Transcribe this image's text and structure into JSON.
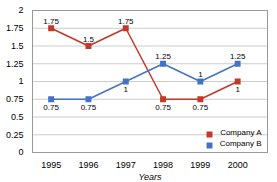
{
  "chart_data": {
    "type": "line",
    "x": [
      1995,
      1996,
      1997,
      1998,
      1999,
      2000
    ],
    "series": [
      {
        "name": "Company A",
        "color": "#c0392b",
        "marker": "square",
        "values": [
          1.75,
          1.5,
          1.75,
          0.75,
          0.75,
          1.0
        ]
      },
      {
        "name": "Company B",
        "color": "#4472c4",
        "marker": "square",
        "values": [
          0.75,
          0.75,
          1.0,
          1.25,
          1.0,
          1.25
        ]
      }
    ],
    "xlabel": "Years",
    "xlim": [
      1994.5,
      2000.8
    ],
    "xticks": [
      1995,
      1996,
      1997,
      1998,
      1999,
      2000
    ],
    "ylim": [
      0,
      2
    ],
    "yticks": [
      0,
      0.25,
      0.5,
      0.75,
      1.0,
      1.25,
      1.5,
      1.75,
      2.0
    ],
    "grid": true,
    "legend": "lower right",
    "data_labels": true
  }
}
